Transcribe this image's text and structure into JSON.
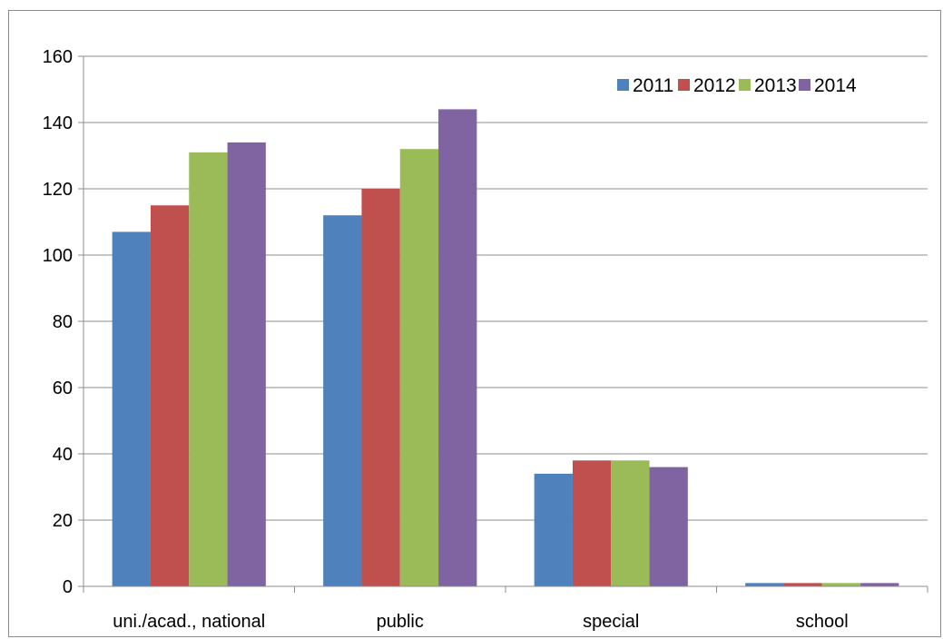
{
  "chart_data": {
    "type": "bar",
    "title": "",
    "xlabel": "",
    "ylabel": "",
    "categories": [
      "uni./acad., national",
      "public",
      "special",
      "school"
    ],
    "series": [
      {
        "name": "2011",
        "color": "#4f81bd",
        "values": [
          107,
          112,
          34,
          1
        ]
      },
      {
        "name": "2012",
        "color": "#c0504d",
        "values": [
          115,
          120,
          38,
          1
        ]
      },
      {
        "name": "2013",
        "color": "#9bbb59",
        "values": [
          131,
          132,
          38,
          1
        ]
      },
      {
        "name": "2014",
        "color": "#8064a2",
        "values": [
          134,
          144,
          36,
          1
        ]
      }
    ],
    "ylim": [
      0,
      160
    ],
    "yticks": [
      0,
      20,
      40,
      60,
      80,
      100,
      120,
      140,
      160
    ],
    "grid": true,
    "legend_position": "top-right"
  }
}
